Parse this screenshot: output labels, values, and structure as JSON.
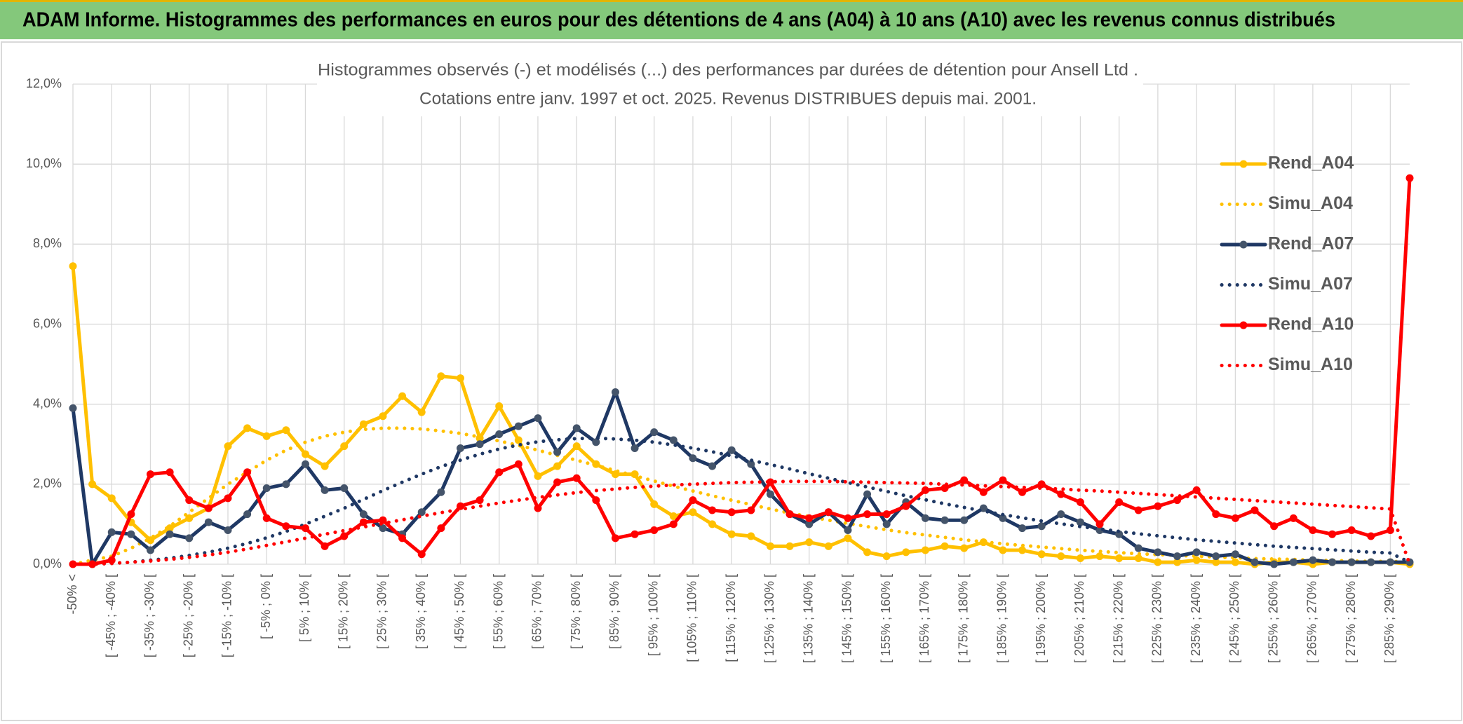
{
  "header": {
    "title": "ADAM Informe. Histogrammes des performances en euros pour des détentions de 4 ans (A04) à 10 ans (A10) avec les revenus connus distribués"
  },
  "chart_data": {
    "type": "line",
    "title": "Histogrammes observés (-) et modélisés (...) des performances par durées de détention pour Ansell Ltd .",
    "subtitle": "Cotations entre janv. 1997 et oct. 2025. Revenus DISTRIBUES depuis mai. 2001.",
    "categories": [
      "-50% <",
      null,
      "[ -45% ; -40% [",
      null,
      "[ -35% ; -30% [",
      null,
      "[ -25% ; -20% [",
      null,
      "[ -15% ; -10% [",
      null,
      "[ -5% ; 0% [",
      null,
      "[ 5% ; 10% [",
      null,
      "[ 15% ; 20% [",
      null,
      "[ 25% ; 30% [",
      null,
      "[ 35% ; 40% [",
      null,
      "[ 45% ; 50% [",
      null,
      "[ 55% ; 60% [",
      null,
      "[ 65% ; 70% [",
      null,
      "[ 75% ; 80% [",
      null,
      "[ 85% ; 90% [",
      null,
      "[ 95% ; 100% [",
      null,
      "[ 105% ; 110% [",
      null,
      "[ 115% ; 120% [",
      null,
      "[ 125% ; 130% [",
      null,
      "[ 135% ; 140% [",
      null,
      "[ 145% ; 150% [",
      null,
      "[ 155% ; 160% [",
      null,
      "[ 165% ; 170% [",
      null,
      "[ 175% ; 180% [",
      null,
      "[ 185% ; 190% [",
      null,
      "[ 195% ; 200% [",
      null,
      "[ 205% ; 210% [",
      null,
      "[ 215% ; 220% [",
      null,
      "[ 225% ; 230% [",
      null,
      "[ 235% ; 240% [",
      null,
      "[ 245% ; 250% [",
      null,
      "[ 255% ; 260% [",
      null,
      "[ 265% ; 270% [",
      null,
      "[ 275% ; 280% [",
      null,
      "[ 285% ; 290% [",
      null
    ],
    "ylim": [
      0,
      12
    ],
    "yticks": [
      {
        "value": 0,
        "label": "0,0%"
      },
      {
        "value": 2,
        "label": "2,0%"
      },
      {
        "value": 4,
        "label": "4,0%"
      },
      {
        "value": 6,
        "label": "6,0%"
      },
      {
        "value": 8,
        "label": "8,0%"
      },
      {
        "value": 10,
        "label": "10,0%"
      },
      {
        "value": 12,
        "label": "12,0%"
      }
    ],
    "grid": true,
    "legend": "right",
    "series": [
      {
        "name": "Rend_A04",
        "color": "#FFC000",
        "marker_color": "#FFC000",
        "line_style": "solid",
        "markers": true,
        "values": [
          7.45,
          2.0,
          1.65,
          1.05,
          0.6,
          0.9,
          1.15,
          1.4,
          2.95,
          3.4,
          3.2,
          3.35,
          2.75,
          2.45,
          2.95,
          3.5,
          3.7,
          4.2,
          3.8,
          4.7,
          4.65,
          3.15,
          3.95,
          3.1,
          2.2,
          2.45,
          2.95,
          2.5,
          2.25,
          2.25,
          1.5,
          1.2,
          1.3,
          1.0,
          0.75,
          0.7,
          0.45,
          0.45,
          0.55,
          0.45,
          0.65,
          0.3,
          0.2,
          0.3,
          0.35,
          0.45,
          0.4,
          0.55,
          0.35,
          0.35,
          0.25,
          0.2,
          0.15,
          0.2,
          0.15,
          0.15,
          0.05,
          0.05,
          0.1,
          0.05,
          0.05,
          0.0,
          0.05,
          0.05,
          0.0,
          0.05,
          0.05,
          0.05,
          0.05,
          0.0
        ]
      },
      {
        "name": "Simu_A04",
        "color": "#FFC000",
        "line_style": "dotted",
        "markers": false,
        "values": [
          0.0,
          0.1,
          0.2,
          0.4,
          0.65,
          0.95,
          1.3,
          1.65,
          2.0,
          2.3,
          2.6,
          2.85,
          3.05,
          3.2,
          3.3,
          3.37,
          3.4,
          3.4,
          3.38,
          3.33,
          3.27,
          3.18,
          3.08,
          2.97,
          2.85,
          2.72,
          2.6,
          2.47,
          2.34,
          2.21,
          2.08,
          1.95,
          1.83,
          1.71,
          1.6,
          1.49,
          1.38,
          1.28,
          1.19,
          1.1,
          1.02,
          0.94,
          0.86,
          0.79,
          0.73,
          0.67,
          0.61,
          0.56,
          0.51,
          0.47,
          0.43,
          0.39,
          0.35,
          0.32,
          0.29,
          0.26,
          0.24,
          0.22,
          0.2,
          0.18,
          0.16,
          0.14,
          0.13,
          0.12,
          0.1,
          0.09,
          0.08,
          0.07,
          0.07,
          0.06
        ]
      },
      {
        "name": "Rend_A07",
        "color": "#1F3864",
        "marker_color": "#44546A",
        "line_style": "solid",
        "markers": true,
        "values": [
          3.9,
          0.0,
          0.8,
          0.75,
          0.35,
          0.75,
          0.65,
          1.05,
          0.85,
          1.25,
          1.9,
          2.0,
          2.5,
          1.85,
          1.9,
          1.25,
          0.9,
          0.75,
          1.3,
          1.8,
          2.9,
          3.0,
          3.25,
          3.45,
          3.65,
          2.8,
          3.4,
          3.05,
          4.3,
          2.9,
          3.3,
          3.1,
          2.65,
          2.45,
          2.85,
          2.5,
          1.75,
          1.25,
          1.0,
          1.3,
          0.85,
          1.75,
          1.0,
          1.55,
          1.15,
          1.1,
          1.1,
          1.4,
          1.15,
          0.9,
          0.95,
          1.25,
          1.05,
          0.85,
          0.75,
          0.4,
          0.3,
          0.2,
          0.3,
          0.2,
          0.25,
          0.05,
          0.0,
          0.05,
          0.1,
          0.05,
          0.05,
          0.05,
          0.05,
          0.05
        ]
      },
      {
        "name": "Simu_A07",
        "color": "#1F3864",
        "line_style": "dotted",
        "markers": false,
        "values": [
          0.0,
          0.0,
          0.02,
          0.05,
          0.1,
          0.15,
          0.22,
          0.3,
          0.4,
          0.52,
          0.66,
          0.82,
          1.0,
          1.2,
          1.4,
          1.62,
          1.84,
          2.05,
          2.25,
          2.44,
          2.6,
          2.75,
          2.88,
          2.98,
          3.06,
          3.11,
          3.14,
          3.15,
          3.13,
          3.1,
          3.05,
          2.98,
          2.9,
          2.81,
          2.71,
          2.6,
          2.49,
          2.38,
          2.26,
          2.15,
          2.04,
          1.93,
          1.82,
          1.71,
          1.61,
          1.51,
          1.42,
          1.33,
          1.24,
          1.16,
          1.08,
          1.01,
          0.94,
          0.88,
          0.82,
          0.76,
          0.71,
          0.66,
          0.61,
          0.57,
          0.53,
          0.49,
          0.45,
          0.42,
          0.39,
          0.36,
          0.33,
          0.3,
          0.28,
          0.05
        ]
      },
      {
        "name": "Rend_A10",
        "color": "#FF0000",
        "marker_color": "#FF0000",
        "line_style": "solid",
        "markers": true,
        "values": [
          0.0,
          0.0,
          0.1,
          1.25,
          2.25,
          2.3,
          1.6,
          1.4,
          1.65,
          2.3,
          1.15,
          0.95,
          0.9,
          0.45,
          0.7,
          1.05,
          1.1,
          0.65,
          0.25,
          0.9,
          1.45,
          1.6,
          2.3,
          2.5,
          1.4,
          2.05,
          2.15,
          1.6,
          0.65,
          0.75,
          0.85,
          1.0,
          1.6,
          1.35,
          1.3,
          1.35,
          2.05,
          1.25,
          1.15,
          1.3,
          1.15,
          1.25,
          1.25,
          1.45,
          1.85,
          1.9,
          2.1,
          1.8,
          2.1,
          1.8,
          2.0,
          1.75,
          1.55,
          1.0,
          1.55,
          1.35,
          1.45,
          1.6,
          1.85,
          1.25,
          1.15,
          1.35,
          0.95,
          1.15,
          0.85,
          0.75,
          0.85,
          0.7,
          0.85,
          9.65
        ]
      },
      {
        "name": "Simu_A10",
        "color": "#FF0000",
        "line_style": "dotted",
        "markers": false,
        "values": [
          0.0,
          0.0,
          0.02,
          0.05,
          0.08,
          0.12,
          0.17,
          0.23,
          0.3,
          0.38,
          0.47,
          0.56,
          0.65,
          0.75,
          0.84,
          0.93,
          1.02,
          1.11,
          1.2,
          1.29,
          1.37,
          1.45,
          1.53,
          1.6,
          1.67,
          1.73,
          1.79,
          1.84,
          1.88,
          1.92,
          1.95,
          1.98,
          2.0,
          2.02,
          2.04,
          2.05,
          2.06,
          2.07,
          2.07,
          2.07,
          2.06,
          2.05,
          2.04,
          2.03,
          2.02,
          2.0,
          1.98,
          1.96,
          1.94,
          1.92,
          1.9,
          1.88,
          1.85,
          1.83,
          1.8,
          1.77,
          1.74,
          1.71,
          1.68,
          1.65,
          1.62,
          1.59,
          1.56,
          1.53,
          1.5,
          1.47,
          1.44,
          1.41,
          1.38,
          0.0
        ]
      }
    ]
  }
}
